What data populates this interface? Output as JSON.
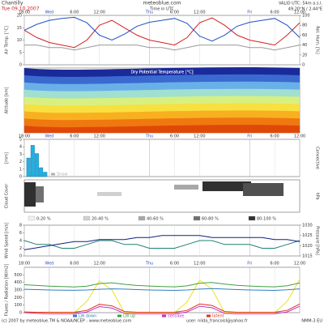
{
  "header": {
    "location": "Chantilly",
    "date": "Tue 09.10.2007",
    "site": "meteoblue.com",
    "time_note": "Time in UTC",
    "coords": "49.20°N / 2.44°E",
    "elevation": "VALID UTC: 54m a.s.l."
  },
  "time_axis": {
    "xlim": [
      0,
      66
    ],
    "ticks": [
      {
        "value": 0,
        "label": "18:00"
      },
      {
        "value": 6,
        "label": "Wed"
      },
      {
        "value": 12,
        "label": "6:00"
      },
      {
        "value": 18,
        "label": "12:00"
      },
      {
        "value": 30,
        "label": "Thu"
      },
      {
        "value": 36,
        "label": "6:00"
      },
      {
        "value": 42,
        "label": "12:00"
      },
      {
        "value": 54,
        "label": "Fri"
      },
      {
        "value": 60,
        "label": "6:00"
      },
      {
        "value": 66,
        "label": "12:00"
      }
    ]
  },
  "chart_data": [
    {
      "type": "line",
      "ylabel": "Air Temp. [°C]",
      "y2label": "Rel. Hum. [%]",
      "ylim": [
        0,
        20
      ],
      "yticks": [
        0,
        5,
        10,
        15,
        20
      ],
      "y2lim": [
        0,
        100
      ],
      "y2ticks": [
        0,
        20,
        40,
        60,
        80,
        100
      ],
      "x": [
        0,
        3,
        6,
        9,
        12,
        15,
        18,
        21,
        24,
        27,
        30,
        33,
        36,
        39,
        42,
        45,
        48,
        51,
        54,
        57,
        60,
        63,
        66
      ],
      "series": [
        {
          "color": "#d42020",
          "values": [
            14,
            11,
            9,
            8,
            7,
            10,
            16,
            18,
            15,
            12,
            10,
            9,
            8,
            11,
            17,
            19,
            16,
            12,
            10,
            9,
            8,
            12,
            17
          ]
        },
        {
          "color": "#999999",
          "values": [
            8,
            8,
            7,
            7,
            6,
            7,
            8,
            8,
            8,
            8,
            7,
            7,
            6,
            7,
            8,
            8,
            8,
            8,
            7,
            7,
            6,
            7,
            8
          ]
        },
        {
          "color": "#2050c0",
          "axis": "y2",
          "values": [
            70,
            82,
            90,
            94,
            96,
            85,
            60,
            50,
            62,
            78,
            86,
            90,
            94,
            84,
            58,
            48,
            60,
            78,
            86,
            90,
            94,
            80,
            55
          ]
        }
      ]
    },
    {
      "type": "contour",
      "title": "Dry Potential Temperature [°C]",
      "ylabel": "Altitude [km]"
    },
    {
      "type": "bar",
      "ylabel": "[mm]",
      "y2label": "Convective",
      "ylim": [
        0,
        5
      ],
      "yticks": [
        0,
        1,
        2,
        3,
        4,
        5
      ],
      "x": [
        1,
        2,
        3,
        4,
        5
      ],
      "series": [
        {
          "name": "Rain",
          "color": "#20b0e0",
          "values": [
            2.5,
            4.2,
            3.1,
            1.2,
            0.6
          ]
        },
        {
          "name": "Snow",
          "color": "#b0b0b0",
          "values": [
            0,
            0,
            0,
            0,
            0
          ]
        }
      ]
    },
    {
      "type": "cloud",
      "ylabel": "Cloud Cover",
      "y2label": "hPa",
      "legend": [
        {
          "label": "0-20 %",
          "color": "#f0f0f0"
        },
        {
          "label": "20-40 %",
          "color": "#d0d0d0"
        },
        {
          "label": "40-60 %",
          "color": "#a8a8a8"
        },
        {
          "label": "60-80 %",
          "color": "#707070"
        },
        {
          "label": "80-100 %",
          "color": "#303030"
        }
      ]
    },
    {
      "type": "line",
      "ylabel": "Wind Speed [m/s]",
      "y2label": "Pressure [hPa]",
      "ylim": [
        0,
        8
      ],
      "yticks": [
        0,
        2,
        4,
        6,
        8
      ],
      "y2lim": [
        1015,
        1030
      ],
      "y2ticks": [
        1015,
        1020,
        1025,
        1030
      ],
      "x": [
        0,
        3,
        6,
        9,
        12,
        15,
        18,
        21,
        24,
        27,
        30,
        33,
        36,
        39,
        42,
        45,
        48,
        51,
        54,
        57,
        60,
        63,
        66
      ],
      "series": [
        {
          "color": "#208070",
          "values": [
            4,
            3,
            3,
            2,
            2,
            3,
            4,
            4,
            3,
            3,
            2,
            2,
            2,
            3,
            4,
            4,
            3,
            3,
            3,
            2,
            2,
            3,
            4
          ]
        },
        {
          "color": "#102080",
          "axis": "y2",
          "values": [
            1018,
            1019,
            1020,
            1021,
            1022,
            1022,
            1023,
            1023,
            1023,
            1024,
            1024,
            1025,
            1025,
            1025,
            1025,
            1024,
            1024,
            1024,
            1024,
            1024,
            1023,
            1023,
            1022
          ]
        }
      ]
    },
    {
      "type": "line",
      "ylabel": "Fluxes / Radiation [W/m2]",
      "ylim": [
        0,
        600
      ],
      "yticks": [
        0,
        100,
        200,
        300,
        400,
        500
      ],
      "x": [
        0,
        3,
        6,
        9,
        12,
        15,
        18,
        21,
        24,
        27,
        30,
        33,
        36,
        39,
        42,
        45,
        48,
        51,
        54,
        57,
        60,
        63,
        66
      ],
      "series": [
        {
          "color": "#f0e020",
          "values": [
            0,
            0,
            0,
            0,
            0,
            150,
            420,
            300,
            0,
            0,
            0,
            0,
            0,
            140,
            430,
            310,
            0,
            0,
            0,
            0,
            0,
            150,
            440
          ]
        },
        {
          "name": "LW down",
          "color": "#3080c0",
          "values": [
            310,
            305,
            300,
            298,
            296,
            300,
            310,
            315,
            312,
            305,
            300,
            298,
            295,
            300,
            312,
            318,
            312,
            305,
            300,
            298,
            295,
            302,
            315
          ]
        },
        {
          "name": "LW up",
          "color": "#40a040",
          "values": [
            370,
            360,
            350,
            345,
            340,
            350,
            385,
            395,
            375,
            360,
            352,
            346,
            342,
            355,
            390,
            400,
            378,
            362,
            352,
            346,
            342,
            356,
            392
          ]
        },
        {
          "name": "sensible",
          "color": "#c030c0",
          "values": [
            0,
            -10,
            -15,
            -15,
            -15,
            10,
            80,
            60,
            -10,
            -15,
            -15,
            -15,
            -15,
            10,
            85,
            65,
            -10,
            -15,
            -15,
            -15,
            -15,
            10,
            85
          ]
        },
        {
          "name": "latent",
          "color": "#e03020",
          "values": [
            10,
            5,
            5,
            5,
            5,
            30,
            110,
            90,
            15,
            5,
            5,
            5,
            5,
            30,
            115,
            95,
            15,
            5,
            5,
            5,
            5,
            30,
            115
          ]
        }
      ]
    }
  ],
  "footer": {
    "copyright": "(c) 2007 by meteoblue.TM & NOAA/NCEP - www.meteoblue.com",
    "user": "user: nilda_francoisl@yahoo.fr",
    "model": "NMM-3 EU"
  }
}
